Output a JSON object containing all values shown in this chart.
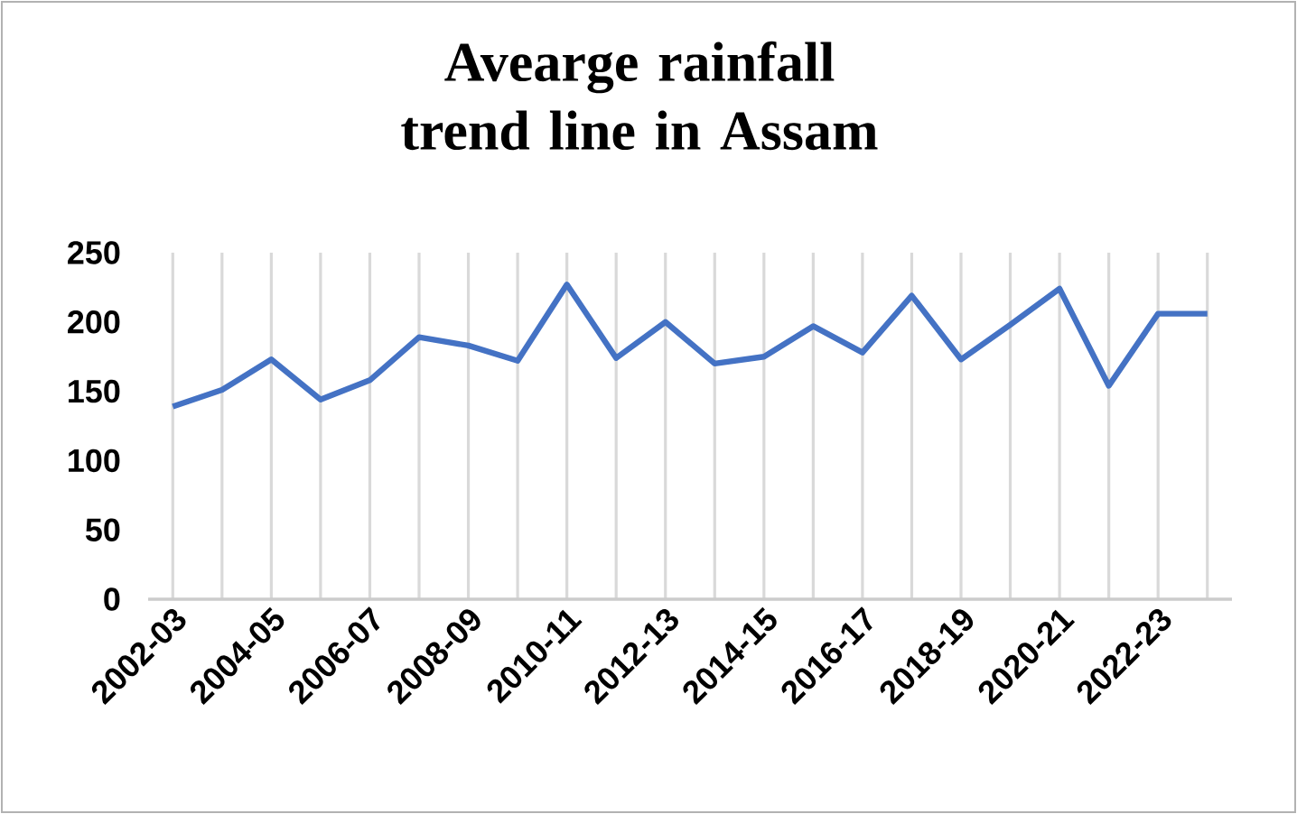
{
  "chart_data": {
    "type": "line",
    "title": "Avearge rainfall trend line in Assam",
    "categories": [
      "2002-03",
      null,
      "2004-05",
      null,
      "2006-07",
      null,
      "2008-09",
      null,
      "2010-11",
      null,
      "2012-13",
      null,
      "2014-15",
      null,
      "2016-17",
      null,
      "2018-19",
      null,
      "2020-21",
      null,
      "2022-23",
      null
    ],
    "series": [
      {
        "color": "#4472c4",
        "values": [
          139,
          151,
          173,
          144,
          158,
          189,
          183,
          172,
          227,
          174,
          200,
          170,
          175,
          197,
          178,
          219,
          173,
          198,
          224,
          154,
          206,
          206
        ]
      }
    ],
    "ylim": [
      0,
      250
    ],
    "yticks": [
      0,
      50,
      100,
      150,
      200,
      250
    ],
    "grid": "x",
    "marker": "none",
    "line_style": "solid"
  }
}
